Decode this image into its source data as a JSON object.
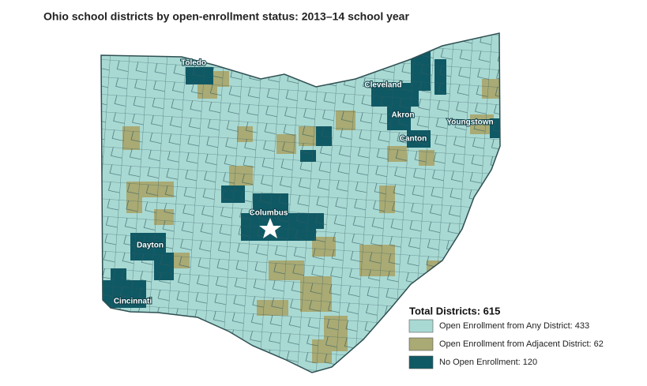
{
  "title": "Ohio school districts by open-enrollment status: 2013–14 school year",
  "cities": [
    "Toledo",
    "Cleveland",
    "Akron",
    "Youngstown",
    "Canton",
    "Columbus",
    "Dayton",
    "Cincinnati"
  ],
  "legend": {
    "title": "Total Districts: 615",
    "items": [
      {
        "label": "Open Enrollment from Any District: 433",
        "color": "#a9d9d3"
      },
      {
        "label": "Open Enrollment from Adjacent District: 62",
        "color": "#a9aa74"
      },
      {
        "label": "No Open Enrollment: 120",
        "color": "#0f5965"
      }
    ]
  }
}
